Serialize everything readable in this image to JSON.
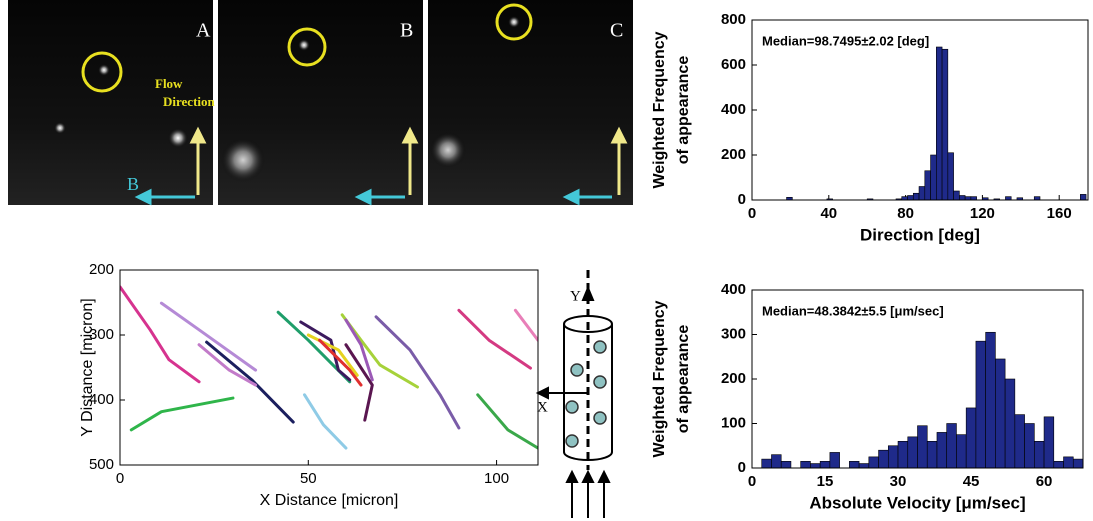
{
  "images": [
    {
      "label": "A"
    },
    {
      "label": "B"
    },
    {
      "label": "C"
    }
  ],
  "image_annotations": {
    "flow_direction": [
      "Flow",
      "Direction"
    ],
    "arrow_label": "B"
  },
  "diagram": {
    "y_label": "Y",
    "x_label": "X"
  },
  "chart_data": [
    {
      "type": "histogram",
      "annotation": "Median=98.7495±2.02 [deg]",
      "xlabel": "Direction [deg]",
      "ylabel": [
        "Weighted Frequency",
        "of appearance"
      ],
      "color": "#1f2a8a",
      "bins": [
        0,
        3,
        6,
        9,
        12,
        15,
        18,
        21,
        24,
        27,
        30,
        33,
        36,
        39,
        42,
        45,
        48,
        51,
        54,
        57,
        60,
        63,
        66,
        69,
        72,
        75,
        78,
        81,
        84,
        87,
        90,
        93,
        96,
        99,
        102,
        105,
        108,
        111,
        114,
        117,
        120,
        123,
        126,
        129,
        132,
        135,
        138,
        141,
        144,
        147,
        150,
        153,
        156,
        159,
        162,
        165,
        168,
        171,
        174
      ],
      "values": [
        0,
        0,
        0,
        0,
        0,
        0,
        12,
        0,
        0,
        0,
        0,
        0,
        0,
        5,
        0,
        0,
        0,
        0,
        0,
        0,
        5,
        0,
        0,
        0,
        0,
        5,
        15,
        20,
        30,
        60,
        130,
        200,
        680,
        670,
        210,
        40,
        20,
        15,
        15,
        0,
        10,
        0,
        5,
        0,
        15,
        0,
        10,
        0,
        0,
        15,
        0,
        0,
        0,
        0,
        0,
        0,
        0,
        25
      ],
      "xlim": [
        0,
        175
      ],
      "ylim": [
        0,
        800
      ],
      "xticks": [
        0,
        40,
        80,
        120,
        160
      ],
      "yticks": [
        0,
        200,
        400,
        600,
        800
      ]
    },
    {
      "type": "line",
      "xlabel": "X Distance [micron]",
      "ylabel": "Y Distance [micron]",
      "xlim": [
        0,
        111
      ],
      "ylim": [
        500,
        200
      ],
      "xticks": [
        0,
        50,
        100
      ],
      "yticks": [
        200,
        300,
        400,
        500
      ],
      "series": [
        {
          "color": "#d6338f",
          "x": [
            0,
            8,
            13,
            21
          ],
          "values": [
            226,
            292,
            338,
            372
          ]
        },
        {
          "color": "#2fb54a",
          "x": [
            3,
            11,
            30
          ],
          "values": [
            446,
            418,
            397
          ]
        },
        {
          "color": "#b58ad6",
          "x": [
            11,
            21,
            36
          ],
          "values": [
            251,
            292,
            354
          ]
        },
        {
          "color": "#1b1f5e",
          "x": [
            23,
            35,
            46
          ],
          "values": [
            311,
            369,
            434
          ]
        },
        {
          "color": "#c27bc9",
          "x": [
            21,
            29,
            36
          ],
          "values": [
            315,
            354,
            377
          ]
        },
        {
          "color": "#1f9e6a",
          "x": [
            42,
            50,
            61
          ],
          "values": [
            265,
            308,
            372
          ]
        },
        {
          "color": "#8fcbe6",
          "x": [
            49,
            54,
            60
          ],
          "values": [
            392,
            438,
            474
          ]
        },
        {
          "color": "#3c1a5e",
          "x": [
            48,
            56,
            58,
            61
          ],
          "values": [
            280,
            308,
            354,
            369
          ]
        },
        {
          "color": "#e6d21f",
          "x": [
            50,
            58,
            63
          ],
          "values": [
            300,
            323,
            362
          ]
        },
        {
          "color": "#e0302f",
          "x": [
            53,
            61,
            64
          ],
          "values": [
            308,
            354,
            377
          ]
        },
        {
          "color": "#5a1650",
          "x": [
            60,
            67,
            65
          ],
          "values": [
            315,
            377,
            431
          ]
        },
        {
          "color": "#a6d23a",
          "x": [
            59,
            64,
            69,
            79
          ],
          "values": [
            269,
            308,
            346,
            380
          ]
        },
        {
          "color": "#9b59b6",
          "x": [
            60,
            64,
            67
          ],
          "values": [
            277,
            315,
            369
          ]
        },
        {
          "color": "#7a5ca8",
          "x": [
            68,
            77,
            85,
            90
          ],
          "values": [
            272,
            323,
            392,
            443
          ]
        },
        {
          "color": "#d43a82",
          "x": [
            90,
            98,
            109
          ],
          "values": [
            262,
            308,
            351
          ]
        },
        {
          "color": "#3aa84a",
          "x": [
            95,
            103,
            111
          ],
          "values": [
            392,
            446,
            474
          ]
        },
        {
          "color": "#e87fb8",
          "x": [
            105,
            111
          ],
          "values": [
            262,
            308
          ]
        }
      ]
    },
    {
      "type": "histogram",
      "annotation": "Median=48.3842±5.5 [μm/sec]",
      "xlabel": "Absolute Velocity [μm/sec]",
      "ylabel": [
        "Weighted Frequency",
        "of appearance"
      ],
      "color": "#1f2a8a",
      "bins": [
        0,
        2,
        4,
        6,
        8,
        10,
        12,
        14,
        16,
        18,
        20,
        22,
        24,
        26,
        28,
        30,
        32,
        34,
        36,
        38,
        40,
        42,
        44,
        46,
        48,
        50,
        52,
        54,
        56,
        58,
        60,
        62,
        64,
        66,
        68
      ],
      "values": [
        0,
        20,
        30,
        15,
        0,
        15,
        10,
        15,
        35,
        0,
        15,
        10,
        25,
        40,
        50,
        60,
        70,
        95,
        60,
        80,
        100,
        75,
        135,
        285,
        305,
        245,
        200,
        120,
        100,
        60,
        115,
        15,
        25,
        20
      ],
      "xlim": [
        0,
        68
      ],
      "ylim": [
        0,
        400
      ],
      "xticks": [
        0,
        15,
        30,
        45,
        60
      ],
      "yticks": [
        0,
        100,
        200,
        300,
        400
      ]
    }
  ]
}
